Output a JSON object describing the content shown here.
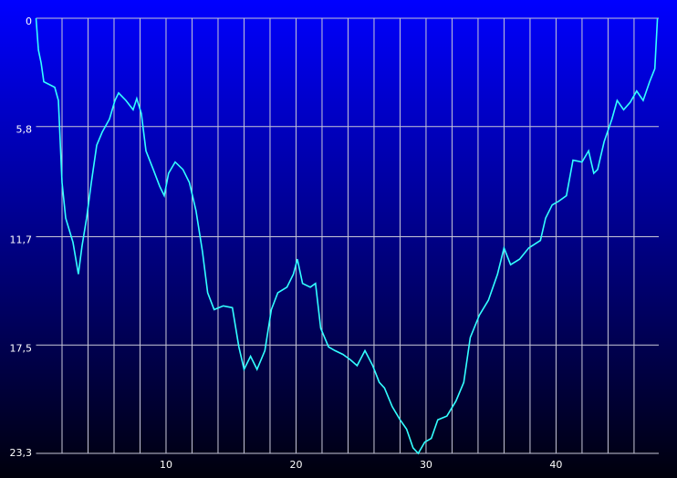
{
  "chart_data": {
    "type": "line",
    "invert_y": true,
    "grid": true,
    "x": [
      0,
      0.18,
      0.39,
      0.6,
      1.44,
      1.72,
      2.0,
      2.28,
      2.84,
      3.26,
      3.54,
      3.89,
      4.25,
      4.67,
      5.09,
      5.65,
      6.07,
      6.35,
      6.91,
      7.47,
      7.75,
      8.1,
      8.46,
      9.02,
      9.51,
      9.86,
      10.2,
      10.7,
      11.3,
      11.8,
      12.3,
      12.8,
      13.2,
      13.7,
      14.4,
      15.1,
      15.6,
      16.0,
      16.5,
      17.0,
      17.6,
      18.1,
      18.6,
      19.3,
      19.8,
      20.1,
      20.5,
      21.1,
      21.5,
      21.9,
      22.5,
      23.0,
      23.6,
      24.2,
      24.7,
      25.3,
      25.9,
      26.4,
      26.8,
      27.4,
      28.0,
      28.5,
      29.0,
      29.4,
      29.9,
      30.4,
      30.9,
      31.6,
      32.3,
      32.9,
      33.4,
      34.1,
      34.8,
      35.5,
      36.0,
      36.5,
      37.2,
      37.9,
      38.8,
      39.2,
      39.7,
      40.2,
      40.8,
      41.3,
      42.0,
      42.5,
      42.9,
      43.2,
      43.7,
      44.3,
      44.7,
      45.2,
      45.7,
      46.2,
      46.7,
      47.2,
      47.6,
      47.8
    ],
    "series": [
      {
        "color": "#33ffff",
        "values": [
          0,
          1.7,
          2.4,
          3.4,
          3.7,
          4.4,
          8.8,
          10.7,
          12.0,
          13.7,
          12.2,
          10.7,
          8.8,
          6.8,
          6.1,
          5.4,
          4.4,
          4.0,
          4.4,
          4.9,
          4.3,
          5.1,
          7.1,
          8.1,
          9.0,
          9.5,
          8.3,
          7.7,
          8.1,
          8.8,
          10.3,
          12.5,
          14.7,
          15.6,
          15.4,
          15.5,
          17.6,
          18.8,
          18.1,
          18.8,
          17.8,
          15.6,
          14.7,
          14.4,
          13.7,
          12.9,
          14.2,
          14.4,
          14.2,
          16.6,
          17.6,
          17.8,
          18.0,
          18.3,
          18.6,
          17.8,
          18.6,
          19.5,
          19.8,
          20.8,
          21.5,
          22.0,
          23.0,
          23.3,
          22.7,
          22.5,
          21.5,
          21.3,
          20.5,
          19.5,
          17.1,
          15.9,
          15.1,
          13.7,
          12.3,
          13.2,
          12.9,
          12.3,
          11.9,
          10.7,
          10.0,
          9.8,
          9.5,
          7.6,
          7.7,
          7.1,
          8.3,
          8.1,
          6.6,
          5.4,
          4.4,
          4.9,
          4.5,
          3.9,
          4.4,
          3.4,
          2.7,
          0
        ]
      }
    ],
    "xlim": [
      0,
      47.9
    ],
    "xticks": [
      10,
      20,
      30,
      40
    ],
    "xgrid": [
      2,
      4,
      6,
      8,
      10,
      12,
      14,
      16,
      18,
      20,
      22,
      24,
      26,
      28,
      30,
      32,
      34,
      36,
      38,
      40,
      42,
      44,
      46
    ],
    "ylim": [
      0,
      23.3
    ],
    "yticks": [
      0,
      {
        "value": 5.8,
        "label": "5,8"
      },
      {
        "value": 11.7,
        "label": "11,7"
      },
      {
        "value": 17.5,
        "label": "17,5"
      },
      {
        "value": 23.3,
        "label": "23,3"
      }
    ]
  }
}
